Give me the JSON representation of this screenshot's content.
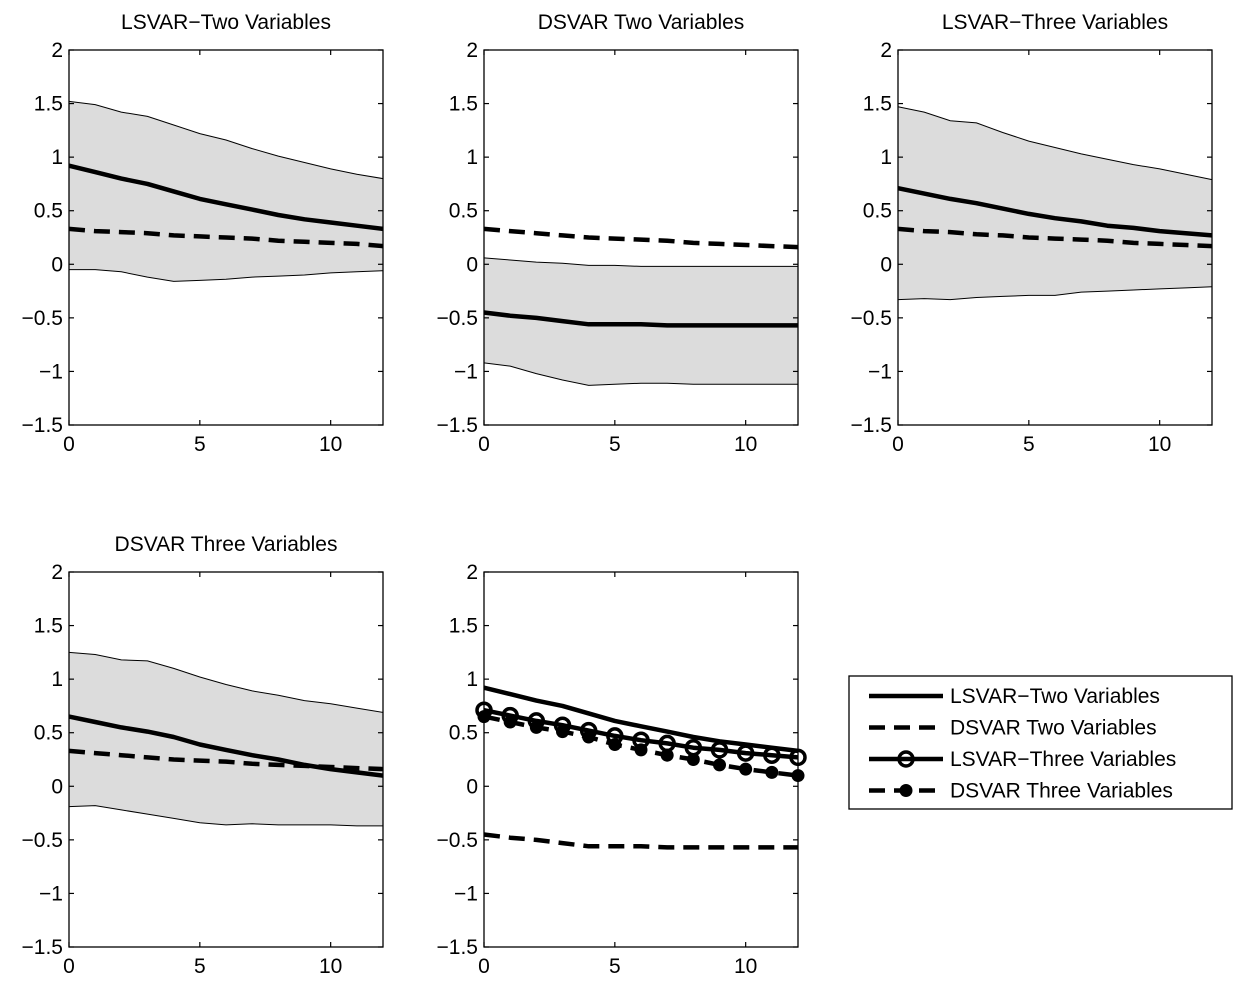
{
  "chart_data": [
    {
      "type": "line",
      "title": "LSVAR−Two Variables",
      "xlim": [
        0,
        12
      ],
      "ylim": [
        -1.5,
        2
      ],
      "xticks": [
        "0",
        "5",
        "10"
      ],
      "yticks": [
        "−1.5",
        "−1",
        "−0.5",
        "0",
        "0.5",
        "1",
        "1.5",
        "2"
      ],
      "band": {
        "x": [
          0,
          1,
          2,
          3,
          4,
          5,
          6,
          7,
          8,
          9,
          10,
          11,
          12
        ],
        "upper": [
          1.52,
          1.49,
          1.42,
          1.38,
          1.3,
          1.22,
          1.16,
          1.08,
          1.01,
          0.95,
          0.89,
          0.84,
          0.8
        ],
        "lower": [
          -0.05,
          -0.05,
          -0.07,
          -0.12,
          -0.16,
          -0.15,
          -0.14,
          -0.12,
          -0.11,
          -0.1,
          -0.08,
          -0.07,
          -0.06
        ]
      },
      "series": [
        {
          "style": "solid",
          "x": [
            0,
            1,
            2,
            3,
            4,
            5,
            6,
            7,
            8,
            9,
            10,
            11,
            12
          ],
          "y": [
            0.92,
            0.86,
            0.8,
            0.75,
            0.68,
            0.61,
            0.56,
            0.51,
            0.46,
            0.42,
            0.39,
            0.36,
            0.33
          ]
        },
        {
          "style": "dashed",
          "x": [
            0,
            1,
            2,
            3,
            4,
            5,
            6,
            7,
            8,
            9,
            10,
            11,
            12
          ],
          "y": [
            0.33,
            0.31,
            0.3,
            0.29,
            0.27,
            0.26,
            0.25,
            0.24,
            0.22,
            0.21,
            0.2,
            0.19,
            0.17
          ]
        }
      ]
    },
    {
      "type": "line",
      "title": "DSVAR Two Variables",
      "xlim": [
        0,
        12
      ],
      "ylim": [
        -1.5,
        2
      ],
      "xticks": [
        "0",
        "5",
        "10"
      ],
      "yticks": [
        "−1.5",
        "−1",
        "−0.5",
        "0",
        "0.5",
        "1",
        "1.5",
        "2"
      ],
      "band": {
        "x": [
          0,
          1,
          2,
          3,
          4,
          5,
          6,
          7,
          8,
          9,
          10,
          11,
          12
        ],
        "upper": [
          0.06,
          0.04,
          0.02,
          0.01,
          -0.01,
          -0.01,
          -0.02,
          -0.02,
          -0.02,
          -0.02,
          -0.02,
          -0.02,
          -0.02
        ],
        "lower": [
          -0.92,
          -0.95,
          -1.02,
          -1.08,
          -1.13,
          -1.12,
          -1.11,
          -1.11,
          -1.12,
          -1.12,
          -1.12,
          -1.12,
          -1.12
        ]
      },
      "series": [
        {
          "style": "solid",
          "x": [
            0,
            1,
            2,
            3,
            4,
            5,
            6,
            7,
            8,
            9,
            10,
            11,
            12
          ],
          "y": [
            -0.45,
            -0.48,
            -0.5,
            -0.53,
            -0.56,
            -0.56,
            -0.56,
            -0.57,
            -0.57,
            -0.57,
            -0.57,
            -0.57,
            -0.57
          ]
        },
        {
          "style": "dashed",
          "x": [
            0,
            1,
            2,
            3,
            4,
            5,
            6,
            7,
            8,
            9,
            10,
            11,
            12
          ],
          "y": [
            0.33,
            0.31,
            0.29,
            0.27,
            0.25,
            0.24,
            0.23,
            0.22,
            0.2,
            0.19,
            0.18,
            0.17,
            0.16
          ]
        }
      ]
    },
    {
      "type": "line",
      "title": "LSVAR−Three Variables",
      "xlim": [
        0,
        12
      ],
      "ylim": [
        -1.5,
        2
      ],
      "xticks": [
        "0",
        "5",
        "10"
      ],
      "yticks": [
        "−1.5",
        "−1",
        "−0.5",
        "0",
        "0.5",
        "1",
        "1.5",
        "2"
      ],
      "band": {
        "x": [
          0,
          1,
          2,
          3,
          4,
          5,
          6,
          7,
          8,
          9,
          10,
          11,
          12
        ],
        "upper": [
          1.47,
          1.42,
          1.34,
          1.32,
          1.23,
          1.15,
          1.09,
          1.03,
          0.98,
          0.93,
          0.89,
          0.84,
          0.79
        ],
        "lower": [
          -0.33,
          -0.32,
          -0.33,
          -0.31,
          -0.3,
          -0.29,
          -0.29,
          -0.26,
          -0.25,
          -0.24,
          -0.23,
          -0.22,
          -0.21
        ]
      },
      "series": [
        {
          "style": "solid",
          "x": [
            0,
            1,
            2,
            3,
            4,
            5,
            6,
            7,
            8,
            9,
            10,
            11,
            12
          ],
          "y": [
            0.71,
            0.66,
            0.61,
            0.57,
            0.52,
            0.47,
            0.43,
            0.4,
            0.36,
            0.34,
            0.31,
            0.29,
            0.27
          ]
        },
        {
          "style": "dashed",
          "x": [
            0,
            1,
            2,
            3,
            4,
            5,
            6,
            7,
            8,
            9,
            10,
            11,
            12
          ],
          "y": [
            0.33,
            0.31,
            0.3,
            0.28,
            0.27,
            0.25,
            0.24,
            0.23,
            0.22,
            0.2,
            0.19,
            0.18,
            0.17
          ]
        }
      ]
    },
    {
      "type": "line",
      "title": "DSVAR Three Variables",
      "xlim": [
        0,
        12
      ],
      "ylim": [
        -1.5,
        2
      ],
      "xticks": [
        "0",
        "5",
        "10"
      ],
      "yticks": [
        "−1.5",
        "−1",
        "−0.5",
        "0",
        "0.5",
        "1",
        "1.5",
        "2"
      ],
      "band": {
        "x": [
          0,
          1,
          2,
          3,
          4,
          5,
          6,
          7,
          8,
          9,
          10,
          11,
          12
        ],
        "upper": [
          1.25,
          1.23,
          1.18,
          1.17,
          1.1,
          1.02,
          0.95,
          0.89,
          0.85,
          0.8,
          0.77,
          0.73,
          0.69
        ],
        "lower": [
          -0.19,
          -0.18,
          -0.22,
          -0.26,
          -0.3,
          -0.34,
          -0.36,
          -0.35,
          -0.36,
          -0.36,
          -0.36,
          -0.37,
          -0.37
        ]
      },
      "series": [
        {
          "style": "solid",
          "x": [
            0,
            1,
            2,
            3,
            4,
            5,
            6,
            7,
            8,
            9,
            10,
            11,
            12
          ],
          "y": [
            0.65,
            0.6,
            0.55,
            0.51,
            0.46,
            0.39,
            0.34,
            0.29,
            0.25,
            0.2,
            0.16,
            0.13,
            0.1
          ]
        },
        {
          "style": "dashed",
          "x": [
            0,
            1,
            2,
            3,
            4,
            5,
            6,
            7,
            8,
            9,
            10,
            11,
            12
          ],
          "y": [
            0.33,
            0.31,
            0.29,
            0.27,
            0.25,
            0.24,
            0.23,
            0.21,
            0.2,
            0.19,
            0.18,
            0.17,
            0.16
          ]
        }
      ]
    },
    {
      "type": "line",
      "title": "",
      "xlim": [
        0,
        12
      ],
      "ylim": [
        -1.5,
        2
      ],
      "xticks": [
        "0",
        "5",
        "10"
      ],
      "yticks": [
        "−1.5",
        "−1",
        "−0.5",
        "0",
        "0.5",
        "1",
        "1.5",
        "2"
      ],
      "legend_position": "outside-right",
      "series": [
        {
          "name": "LSVAR−Two Variables",
          "style": "solid",
          "marker": "none",
          "x": [
            0,
            1,
            2,
            3,
            4,
            5,
            6,
            7,
            8,
            9,
            10,
            11,
            12
          ],
          "y": [
            0.92,
            0.86,
            0.8,
            0.75,
            0.68,
            0.61,
            0.56,
            0.51,
            0.46,
            0.42,
            0.39,
            0.36,
            0.33
          ]
        },
        {
          "name": "DSVAR Two Variables",
          "style": "dashed",
          "marker": "none",
          "x": [
            0,
            1,
            2,
            3,
            4,
            5,
            6,
            7,
            8,
            9,
            10,
            11,
            12
          ],
          "y": [
            -0.45,
            -0.48,
            -0.5,
            -0.53,
            -0.56,
            -0.56,
            -0.56,
            -0.57,
            -0.57,
            -0.57,
            -0.57,
            -0.57,
            -0.57
          ]
        },
        {
          "name": "LSVAR−Three Variables",
          "style": "solid",
          "marker": "open-circle",
          "x": [
            0,
            1,
            2,
            3,
            4,
            5,
            6,
            7,
            8,
            9,
            10,
            11,
            12
          ],
          "y": [
            0.71,
            0.66,
            0.61,
            0.57,
            0.52,
            0.47,
            0.43,
            0.4,
            0.36,
            0.34,
            0.31,
            0.29,
            0.27
          ]
        },
        {
          "name": "DSVAR Three Variables",
          "style": "dashed",
          "marker": "filled-circle",
          "x": [
            0,
            1,
            2,
            3,
            4,
            5,
            6,
            7,
            8,
            9,
            10,
            11,
            12
          ],
          "y": [
            0.65,
            0.6,
            0.55,
            0.51,
            0.46,
            0.39,
            0.34,
            0.29,
            0.25,
            0.2,
            0.16,
            0.13,
            0.1
          ]
        }
      ]
    }
  ]
}
